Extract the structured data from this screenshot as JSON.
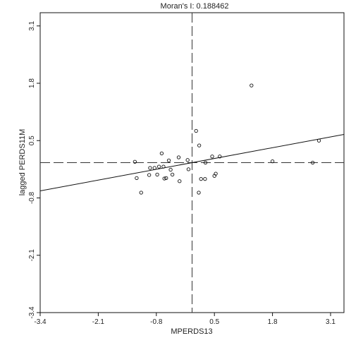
{
  "chart_data": {
    "type": "scatter",
    "title": "Moran's I: 0.188462",
    "xlabel": "MPERDS13",
    "ylabel": "lagged PERDS11M",
    "xlim": [
      -3.4,
      3.4
    ],
    "ylim": [
      -3.4,
      3.4
    ],
    "xticks": [
      -3.4,
      -2.1,
      -0.8,
      0.5,
      1.8,
      3.1
    ],
    "yticks": [
      -3.4,
      -2.1,
      -0.8,
      0.5,
      1.8,
      3.1
    ],
    "xtick_labels": [
      "-3.4",
      "-2.1",
      "-0.8",
      "0.5",
      "1.8",
      "3.1"
    ],
    "ytick_labels": [
      "-3.4",
      "-2.1",
      "-0.8",
      "0.5",
      "1.8",
      "3.1"
    ],
    "mean_lines": {
      "x": 0.0,
      "y": 0.0
    },
    "regression": {
      "slope": 0.188462,
      "intercept": 0.0
    },
    "grid": false,
    "points": [
      {
        "x": -1.28,
        "y": 0.02
      },
      {
        "x": -1.24,
        "y": -0.35
      },
      {
        "x": -1.14,
        "y": -0.68
      },
      {
        "x": -0.96,
        "y": -0.28
      },
      {
        "x": -0.94,
        "y": -0.12
      },
      {
        "x": -0.84,
        "y": -0.12
      },
      {
        "x": -0.78,
        "y": -0.27
      },
      {
        "x": -0.74,
        "y": -0.09
      },
      {
        "x": -0.68,
        "y": 0.21
      },
      {
        "x": -0.64,
        "y": -0.09
      },
      {
        "x": -0.62,
        "y": -0.36
      },
      {
        "x": -0.58,
        "y": -0.35
      },
      {
        "x": -0.52,
        "y": 0.05
      },
      {
        "x": -0.48,
        "y": -0.16
      },
      {
        "x": -0.44,
        "y": -0.27
      },
      {
        "x": -0.3,
        "y": 0.12
      },
      {
        "x": -0.28,
        "y": -0.42
      },
      {
        "x": -0.1,
        "y": 0.06
      },
      {
        "x": -0.08,
        "y": -0.15
      },
      {
        "x": 0.09,
        "y": 0.72
      },
      {
        "x": 0.16,
        "y": 0.39
      },
      {
        "x": 0.15,
        "y": -0.68
      },
      {
        "x": 0.2,
        "y": -0.37
      },
      {
        "x": 0.29,
        "y": -0.37
      },
      {
        "x": 0.3,
        "y": 0.0
      },
      {
        "x": 0.45,
        "y": 0.14
      },
      {
        "x": 0.5,
        "y": -0.3
      },
      {
        "x": 0.53,
        "y": -0.25
      },
      {
        "x": 0.62,
        "y": 0.14
      },
      {
        "x": 1.33,
        "y": 1.75
      },
      {
        "x": 1.8,
        "y": 0.03
      },
      {
        "x": 2.7,
        "y": 0.0
      },
      {
        "x": 2.84,
        "y": 0.5
      }
    ]
  }
}
